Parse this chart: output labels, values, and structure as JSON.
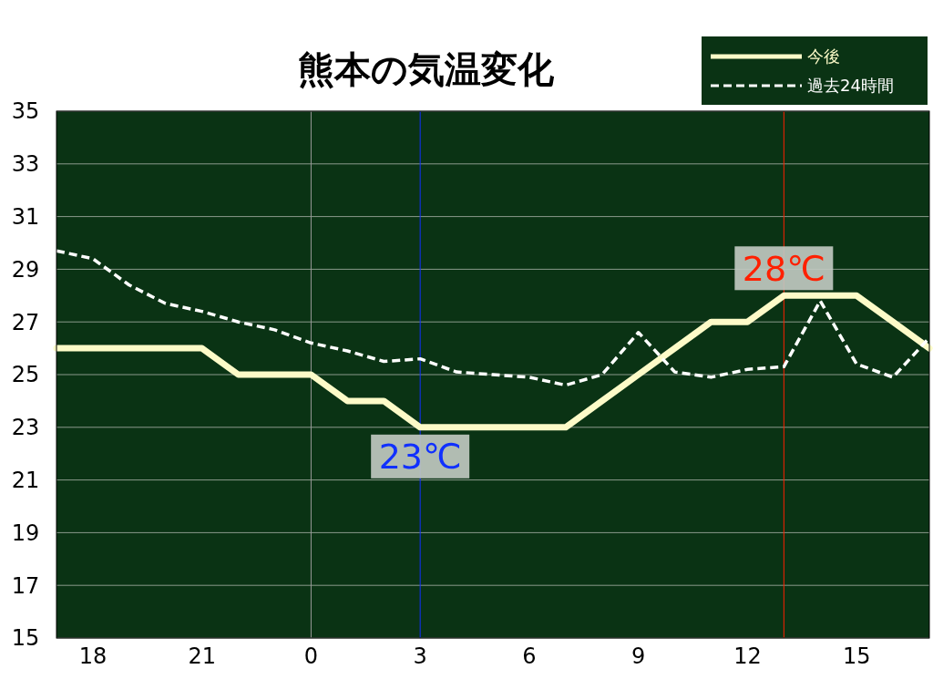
{
  "chart_data": {
    "type": "line",
    "title": "熊本の気温変化",
    "categories": [
      null,
      "18",
      null,
      null,
      "21",
      null,
      null,
      "0",
      null,
      null,
      "3",
      null,
      null,
      "6",
      null,
      null,
      "9",
      null,
      null,
      "12",
      null,
      null,
      "15",
      null,
      null
    ],
    "series": [
      {
        "name": "今後",
        "color": "#fdfbc8",
        "line_style": "solid",
        "values": [
          26,
          26,
          26,
          26,
          26,
          25,
          25,
          25,
          24,
          24,
          23,
          23,
          23,
          23,
          23,
          24,
          25,
          26,
          27,
          27,
          28,
          28,
          28,
          27,
          26
        ]
      },
      {
        "name": "過去24時間",
        "color": "#ffffff",
        "line_style": "dashed",
        "values": [
          29.7,
          29.4,
          28.4,
          27.7,
          27.4,
          27.0,
          26.7,
          26.2,
          25.9,
          25.5,
          25.6,
          25.1,
          25.0,
          24.9,
          24.6,
          25.0,
          26.6,
          25.1,
          24.9,
          25.2,
          25.3,
          27.8,
          25.4,
          24.9,
          26.4
        ]
      }
    ],
    "ylim": [
      15,
      35
    ],
    "yticks": [
      15,
      17,
      19,
      21,
      23,
      25,
      27,
      29,
      31,
      33,
      35
    ],
    "grid": "y",
    "legend": "top right",
    "marker": "none",
    "ref_lines": [
      {
        "axis": "x",
        "value": "0",
        "color": "#9a9a9a"
      },
      {
        "axis": "x",
        "value": "3",
        "color": "#1030ff"
      }
    ],
    "annotations": [
      {
        "text": "23℃",
        "x": "3",
        "y": 23
      },
      {
        "text": "28℃",
        "y": 28
      }
    ]
  }
}
